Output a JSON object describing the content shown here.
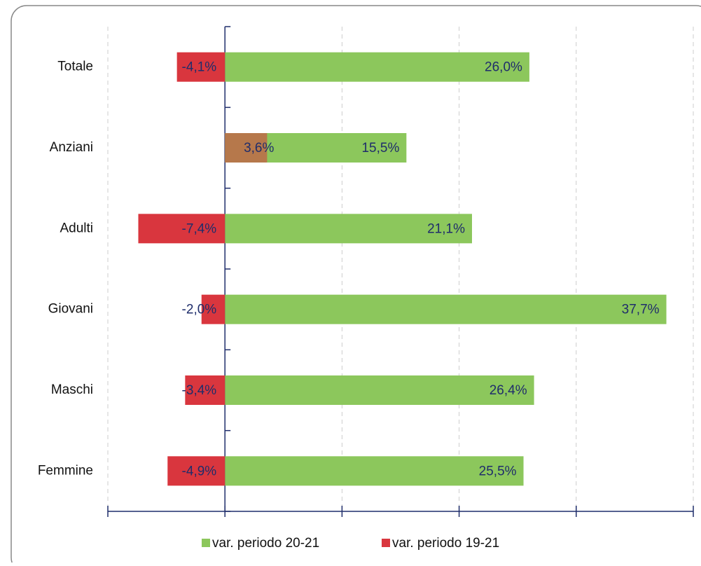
{
  "chart_data": {
    "type": "bar",
    "orientation": "horizontal",
    "categories": [
      "Totale",
      "Anziani",
      "Adulti",
      "Giovani",
      "Maschi",
      "Femmine"
    ],
    "series": [
      {
        "name": "var. periodo 20-21",
        "color": "#8cc75c",
        "values": [
          26.0,
          15.5,
          21.1,
          37.7,
          26.4,
          25.5
        ],
        "value_labels": [
          "26,0%",
          "15,5%",
          "21,1%",
          "37,7%",
          "26,4%",
          "25,5%"
        ]
      },
      {
        "name": "var. periodo 19-21",
        "color": "#d9363e",
        "values": [
          -4.1,
          3.6,
          -7.4,
          -2.0,
          -3.4,
          -4.9
        ],
        "value_labels": [
          "-4,1%",
          "3,6%",
          "-7,4%",
          "-2,0%",
          "-3,4%",
          "-4,9%"
        ]
      }
    ],
    "xlim": [
      -10,
      40
    ],
    "xticks": [
      -10,
      0,
      10,
      20,
      30,
      40
    ],
    "grid": true,
    "legend": "bottom"
  }
}
